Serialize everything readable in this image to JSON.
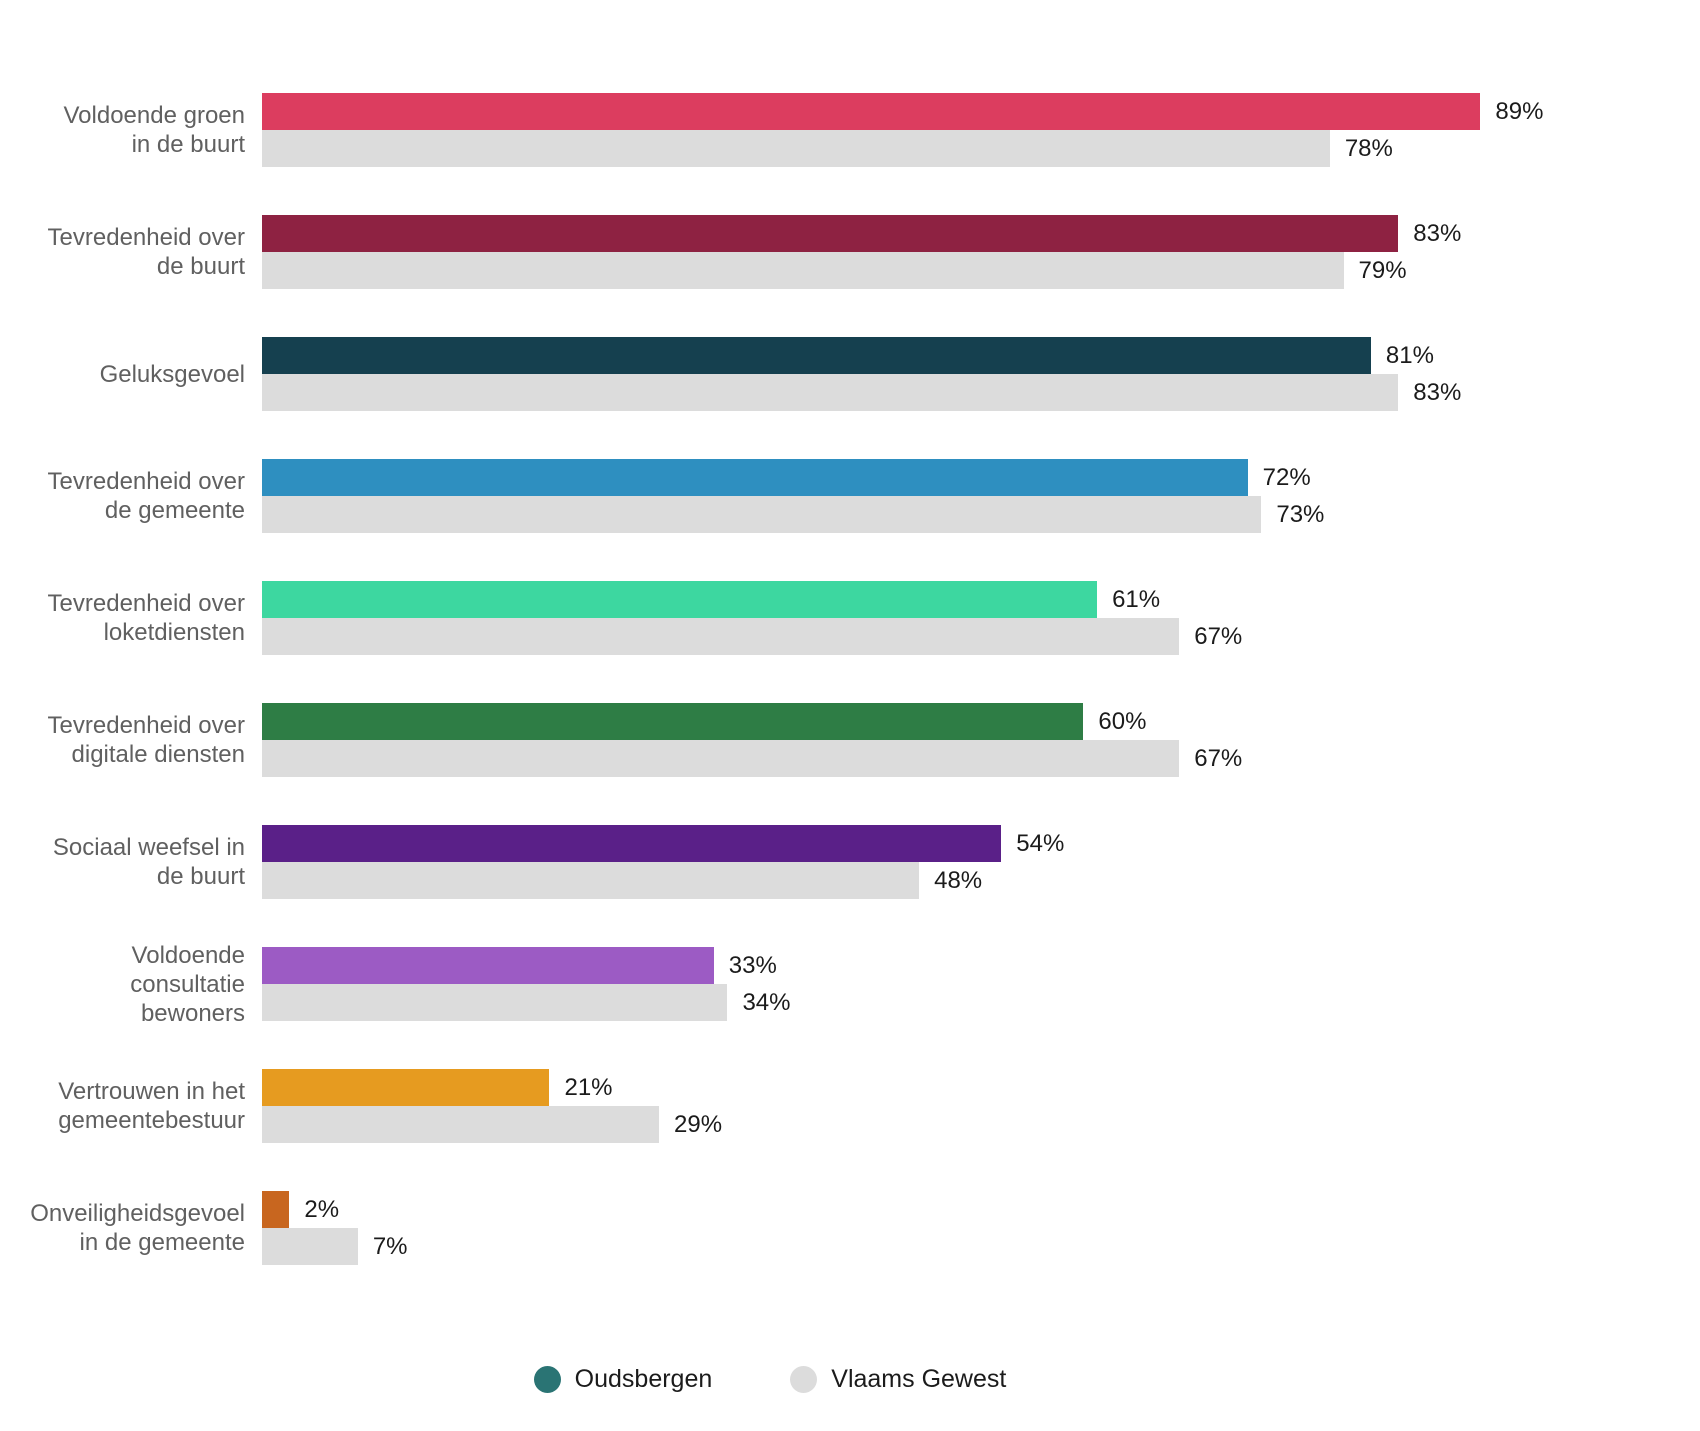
{
  "chart_data": {
    "type": "bar",
    "orientation": "horizontal",
    "title": "",
    "xlabel": "",
    "ylabel": "",
    "xlim": [
      0,
      100
    ],
    "grid": false,
    "legend_position": "bottom",
    "value_suffix": "%",
    "categories": [
      "Voldoende groen in de buurt",
      "Tevredenheid over de buurt",
      "Geluksgevoel",
      "Tevredenheid over de gemeente",
      "Tevredenheid over loketdiensten",
      "Tevredenheid over digitale diensten",
      "Sociaal weefsel in de buurt",
      "Voldoende consultatie bewoners",
      "Vertrouwen in het gemeentebestuur",
      "Onveiligheidsgevoel in de gemeente"
    ],
    "category_lines": [
      [
        "Voldoende groen",
        "in de buurt"
      ],
      [
        "Tevredenheid over",
        "de buurt"
      ],
      [
        "Geluksgevoel"
      ],
      [
        "Tevredenheid over",
        "de gemeente"
      ],
      [
        "Tevredenheid over",
        "loketdiensten"
      ],
      [
        "Tevredenheid over",
        "digitale diensten"
      ],
      [
        "Sociaal weefsel in",
        "de buurt"
      ],
      [
        "Voldoende",
        "consultatie",
        "bewoners"
      ],
      [
        "Vertrouwen in het",
        "gemeentebestuur"
      ],
      [
        "Onveiligheidsgevoel",
        "in de gemeente"
      ]
    ],
    "series": [
      {
        "name": "Oudsbergen",
        "values": [
          89,
          83,
          81,
          72,
          61,
          60,
          54,
          33,
          21,
          2
        ],
        "labels": [
          "89%",
          "83%",
          "81%",
          "72%",
          "61%",
          "60%",
          "54%",
          "33%",
          "21%",
          "2%"
        ],
        "bar_colors": [
          "#dc3d5f",
          "#8e2242",
          "#15404f",
          "#2e8fc0",
          "#3dd7a0",
          "#2e7d45",
          "#5a2088",
          "#9c5bc4",
          "#e69b20",
          "#c8661f"
        ]
      },
      {
        "name": "Vlaams Gewest",
        "values": [
          78,
          79,
          83,
          73,
          67,
          67,
          48,
          34,
          29,
          7
        ],
        "labels": [
          "78%",
          "79%",
          "83%",
          "73%",
          "67%",
          "67%",
          "48%",
          "34%",
          "29%",
          "7%"
        ],
        "bar_color": "#dcdcdc"
      }
    ]
  },
  "legend": {
    "items": [
      {
        "label": "Oudsbergen",
        "dot_color": "#2a7474"
      },
      {
        "label": "Vlaams Gewest",
        "dot_color": "#dcdcdc"
      }
    ]
  }
}
